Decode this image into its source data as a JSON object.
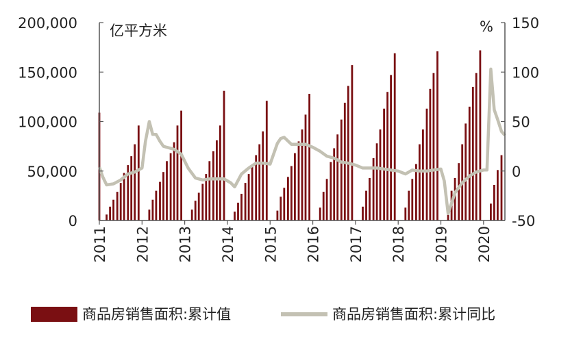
{
  "chart_data": {
    "type": "bar+line",
    "units": {
      "left": "亿平方米",
      "right": "%"
    },
    "left_axis": {
      "ylim": [
        0,
        200000
      ],
      "ticks": [
        "200,000",
        "150,000",
        "100,000",
        "50,000",
        "0"
      ]
    },
    "right_axis": {
      "ylim": [
        -50,
        150
      ],
      "ticks": [
        "150",
        "100",
        "50",
        "0",
        "-50"
      ]
    },
    "x_ticks": [
      "2011",
      "2012",
      "2013",
      "2014",
      "2015",
      "2016",
      "2017",
      "2018",
      "2019",
      "2020"
    ],
    "x_tick_positions": [
      2011,
      2012,
      2013,
      2014,
      2015,
      2016,
      2017,
      2018,
      2019,
      2020
    ],
    "x_range": [
      2011,
      2020.5
    ],
    "legend": {
      "bar_label": "商品房销售面积:累计值",
      "line_label": "商品房销售面积:累计同比"
    },
    "colors": {
      "bar": "#7a0f12",
      "line": "#c3c1b3",
      "axis": "#555555"
    },
    "series": [
      {
        "name": "商品房销售面积:累计值",
        "kind": "bar",
        "x": [
          2011.0,
          2011.17,
          2011.25,
          2011.33,
          2011.42,
          2011.5,
          2011.58,
          2011.67,
          2011.75,
          2011.83,
          2011.92,
          2012.17,
          2012.25,
          2012.33,
          2012.42,
          2012.5,
          2012.58,
          2012.67,
          2012.75,
          2012.83,
          2012.92,
          2013.17,
          2013.25,
          2013.33,
          2013.42,
          2013.5,
          2013.58,
          2013.67,
          2013.75,
          2013.83,
          2013.92,
          2014.17,
          2014.25,
          2014.33,
          2014.42,
          2014.5,
          2014.58,
          2014.67,
          2014.75,
          2014.83,
          2014.92,
          2015.17,
          2015.25,
          2015.33,
          2015.42,
          2015.5,
          2015.58,
          2015.67,
          2015.75,
          2015.83,
          2015.92,
          2016.17,
          2016.25,
          2016.33,
          2016.42,
          2016.5,
          2016.58,
          2016.67,
          2016.75,
          2016.83,
          2016.92,
          2017.17,
          2017.25,
          2017.33,
          2017.42,
          2017.5,
          2017.58,
          2017.67,
          2017.75,
          2017.83,
          2017.92,
          2018.17,
          2018.25,
          2018.33,
          2018.42,
          2018.5,
          2018.58,
          2018.67,
          2018.75,
          2018.83,
          2018.92,
          2019.17,
          2019.25,
          2019.33,
          2019.42,
          2019.5,
          2019.58,
          2019.67,
          2019.75,
          2019.83,
          2019.92,
          2020.17,
          2020.25,
          2020.33,
          2020.42
        ],
        "values": [
          109000,
          6000,
          14000,
          21000,
          29000,
          38000,
          48000,
          56000,
          65000,
          77000,
          96000,
          11000,
          21000,
          30000,
          39000,
          49000,
          60000,
          68000,
          79000,
          96000,
          111000,
          11000,
          20000,
          28000,
          37000,
          47000,
          60000,
          70000,
          81000,
          96000,
          131000,
          9000,
          18000,
          27000,
          38000,
          47000,
          56000,
          66000,
          77000,
          90000,
          121000,
          10000,
          24000,
          33000,
          44000,
          55000,
          68000,
          80000,
          92000,
          107000,
          128000,
          13000,
          29000,
          42000,
          59000,
          73000,
          87000,
          102000,
          119000,
          136000,
          157000,
          14000,
          30000,
          43000,
          63000,
          78000,
          92000,
          113000,
          130000,
          147000,
          169000,
          13000,
          30000,
          42000,
          57000,
          77000,
          92000,
          113000,
          133000,
          149000,
          171000,
          14000,
          30000,
          43000,
          58000,
          77000,
          98000,
          115000,
          135000,
          149000,
          172000,
          17000,
          36000,
          51000,
          66000
        ]
      },
      {
        "name": "商品房销售面积:累计同比",
        "kind": "line",
        "axis": "right",
        "x": [
          2011.0,
          2011.08,
          2011.17,
          2011.33,
          2011.5,
          2011.67,
          2011.83,
          2012.0,
          2012.08,
          2012.17,
          2012.25,
          2012.33,
          2012.42,
          2012.5,
          2012.58,
          2012.75,
          2012.92,
          2013.08,
          2013.25,
          2013.42,
          2013.58,
          2013.75,
          2013.92,
          2014.08,
          2014.17,
          2014.33,
          2014.5,
          2014.67,
          2014.83,
          2015.0,
          2015.17,
          2015.25,
          2015.33,
          2015.5,
          2015.67,
          2015.83,
          2016.0,
          2016.17,
          2016.33,
          2016.5,
          2016.67,
          2016.83,
          2017.0,
          2017.17,
          2017.33,
          2017.5,
          2017.67,
          2017.83,
          2018.0,
          2018.17,
          2018.33,
          2018.5,
          2018.67,
          2018.83,
          2019.0,
          2019.08,
          2019.17,
          2019.33,
          2019.5,
          2019.67,
          2019.83,
          2020.0,
          2020.08,
          2020.17,
          2020.25,
          2020.33,
          2020.42,
          2020.5
        ],
        "values": [
          4,
          -6,
          -14,
          -13,
          -9,
          -3,
          -1,
          3,
          30,
          50,
          37,
          37,
          30,
          25,
          24,
          22,
          17,
          3,
          -7,
          -9,
          -8,
          -8,
          -8,
          -12,
          -16,
          -3,
          3,
          8,
          8,
          7,
          28,
          33,
          34,
          27,
          27,
          27,
          24,
          20,
          15,
          13,
          9,
          8,
          6,
          3,
          3,
          3,
          2,
          1,
          0,
          -3,
          1,
          0,
          0,
          1,
          2,
          -10,
          -43,
          -22,
          -12,
          -5,
          -1,
          1,
          1,
          103,
          62,
          52,
          40,
          36
        ]
      }
    ]
  }
}
